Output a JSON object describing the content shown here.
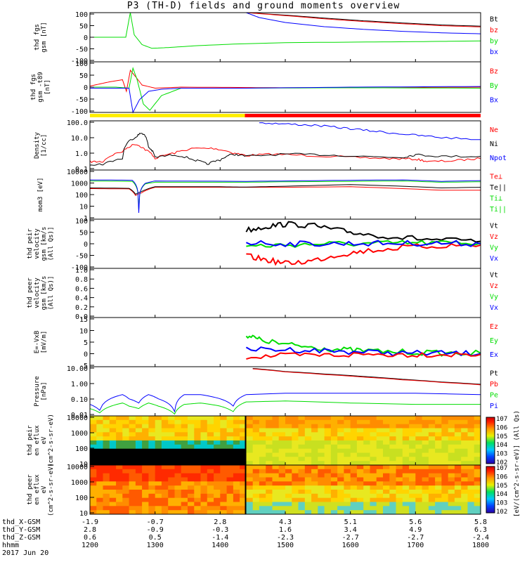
{
  "title": "P3 (TH-D) fields and ground moments overview",
  "date": "2017 Jun 20",
  "time_labels": [
    "1200",
    "1300",
    "1400",
    "1500",
    "1600",
    "1700",
    "1800"
  ],
  "ephemeris": [
    {
      "name": "thd_X-GSM",
      "values": [
        "-1.9",
        "-0.7",
        "2.8",
        "4.3",
        "5.1",
        "5.6",
        "5.8"
      ]
    },
    {
      "name": "thd_Y-GSM",
      "values": [
        "2.8",
        "-0.9",
        "-0.3",
        "1.6",
        "3.4",
        "4.9",
        "6.3"
      ]
    },
    {
      "name": "thd_Z-GSM",
      "values": [
        "0.6",
        "0.5",
        "-1.4",
        "-2.3",
        "-2.7",
        "-2.7",
        "-2.4"
      ]
    },
    {
      "name": "hhmm",
      "values": []
    }
  ],
  "colors": {
    "black": "#000000",
    "red": "#ff0000",
    "green": "#00dd00",
    "blue": "#0000ff",
    "yellow": "#ffee00"
  },
  "spectro_colorbar": {
    "label": "[eV/(cm^2-s-sr-eV)] (All Qs)",
    "ticks": [
      "10^2",
      "10^3",
      "10^4",
      "10^5",
      "10^6",
      "10^7"
    ]
  },
  "chart_data": [
    {
      "type": "line",
      "ylabel": "thd fgs gsm [nT]",
      "ylim": [
        -100,
        100
      ],
      "yticks": [
        "100",
        "50",
        "0",
        "-50",
        "-100"
      ],
      "legend": [
        {
          "name": "Bt",
          "color": "black"
        },
        {
          "name": "bz",
          "color": "red"
        },
        {
          "name": "by",
          "color": "green"
        },
        {
          "name": "bx",
          "color": "blue"
        }
      ],
      "series": [
        {
          "name": "Bt",
          "color": "black",
          "x": [
            1440,
            1500,
            1560,
            1620,
            1680,
            1740,
            1800
          ],
          "y": [
            100,
            90,
            78,
            67,
            58,
            50,
            45
          ]
        },
        {
          "name": "bz",
          "color": "red",
          "x": [
            1440,
            1500,
            1560,
            1620,
            1680,
            1740,
            1800
          ],
          "y": [
            100,
            88,
            75,
            64,
            55,
            47,
            42
          ]
        },
        {
          "name": "by",
          "color": "green",
          "x": [
            1200,
            1255,
            1262,
            1268,
            1280,
            1295,
            1320,
            1360,
            1420,
            1500,
            1600,
            1700,
            1800
          ],
          "y": [
            0,
            0,
            100,
            10,
            -30,
            -45,
            -42,
            -35,
            -28,
            -22,
            -20,
            -18,
            -15
          ]
        },
        {
          "name": "bx",
          "color": "blue",
          "x": [
            1440,
            1460,
            1500,
            1560,
            1620,
            1680,
            1740,
            1800
          ],
          "y": [
            100,
            80,
            60,
            43,
            32,
            24,
            18,
            14
          ]
        }
      ]
    },
    {
      "type": "line",
      "ylabel": "thd fgs gsm -t89 [nT]",
      "ylim": [
        -120,
        120
      ],
      "yticks": [
        "100",
        "50",
        "0",
        "-50",
        "-100"
      ],
      "legend": [
        {
          "name": "Bz",
          "color": "red"
        },
        {
          "name": "By",
          "color": "green"
        },
        {
          "name": "Bx",
          "color": "blue"
        }
      ],
      "series": [
        {
          "name": "Bz",
          "color": "red",
          "x": [
            1200,
            1230,
            1250,
            1256,
            1262,
            1270,
            1280,
            1300,
            1340,
            1440,
            1500,
            1600,
            1700,
            1800
          ],
          "y": [
            5,
            25,
            35,
            -20,
            80,
            50,
            10,
            -5,
            0,
            -2,
            -3,
            -3,
            -2,
            0
          ]
        },
        {
          "name": "By",
          "color": "green",
          "x": [
            1200,
            1240,
            1260,
            1266,
            1272,
            1282,
            1292,
            1310,
            1340,
            1440,
            1600,
            1800
          ],
          "y": [
            0,
            0,
            -5,
            90,
            40,
            -80,
            -110,
            -40,
            -5,
            -5,
            -3,
            -5
          ]
        },
        {
          "name": "Bx",
          "color": "blue",
          "x": [
            1200,
            1240,
            1260,
            1266,
            1276,
            1290,
            1310,
            1340,
            1440,
            1600,
            1800
          ],
          "y": [
            -5,
            -5,
            -5,
            -120,
            -60,
            -20,
            -10,
            -5,
            -5,
            0,
            3
          ]
        }
      ],
      "mode_bar": {
        "segments": [
          {
            "start": 1200,
            "end": 1438,
            "color": "yellow"
          },
          {
            "start": 1438,
            "end": 1800,
            "color": "red"
          }
        ]
      }
    },
    {
      "type": "line",
      "ylabel": "Density [1/cc]",
      "yscale": "log",
      "ylim": [
        0.08,
        200
      ],
      "yticks": [
        "100.0",
        "10.0",
        "1.0",
        "0.1"
      ],
      "legend": [
        {
          "name": "Ne",
          "color": "red"
        },
        {
          "name": "Ni",
          "color": "black"
        },
        {
          "name": "Npot",
          "color": "blue"
        }
      ],
      "series": [
        {
          "name": "Ne",
          "color": "red",
          "x": [
            1200,
            1220,
            1250,
            1270,
            1285,
            1300,
            1330,
            1360,
            1390,
            1420,
            1440,
            1480,
            1540,
            1600,
            1660,
            1700,
            1720,
            1760,
            1800
          ],
          "y": [
            0.3,
            0.3,
            1.5,
            5,
            2,
            0.5,
            1.2,
            2.5,
            2.5,
            1.2,
            0.8,
            1.0,
            0.8,
            0.6,
            0.5,
            0.45,
            0.3,
            0.35,
            0.5
          ]
        },
        {
          "name": "Ni",
          "color": "black",
          "x": [
            1200,
            1220,
            1250,
            1270,
            1280,
            1290,
            1300,
            1330,
            1360,
            1380,
            1400,
            1420,
            1440,
            1500,
            1560,
            1620,
            1680,
            1700,
            1740,
            1800
          ],
          "y": [
            0.2,
            0.2,
            0.5,
            15,
            30,
            3,
            0.6,
            0.9,
            0.4,
            0.2,
            0.4,
            1.0,
            0.7,
            1.0,
            0.9,
            0.7,
            0.6,
            0.9,
            0.7,
            0.7
          ]
        },
        {
          "name": "Npot",
          "color": "blue",
          "x": [
            1460,
            1500,
            1540,
            1580,
            1620,
            1660,
            1700,
            1740,
            1800
          ],
          "y": [
            150,
            120,
            100,
            70,
            45,
            30,
            20,
            14,
            10
          ]
        }
      ]
    },
    {
      "type": "line",
      "ylabel": "mom3 [eV]",
      "yscale": "log",
      "ylim": [
        2,
        10000
      ],
      "yticks": [
        "10000",
        "1000",
        "100",
        "10",
        "1"
      ],
      "legend": [
        {
          "name": "Te⊥",
          "color": "red"
        },
        {
          "name": "Te||",
          "color": "black"
        },
        {
          "name": "Ti⊥",
          "color": "green"
        },
        {
          "name": "Ti||",
          "color": "green"
        }
      ],
      "series": [
        {
          "name": "Te⊥",
          "color": "red",
          "x": [
            1200,
            1260,
            1270,
            1280,
            1300,
            1400,
            1440,
            1500,
            1600,
            1680,
            1740,
            1800
          ],
          "y": [
            400,
            380,
            120,
            200,
            500,
            500,
            500,
            500,
            550,
            400,
            300,
            300
          ]
        },
        {
          "name": "Te||",
          "color": "black",
          "x": [
            1200,
            1260,
            1270,
            1280,
            1300,
            1400,
            1440,
            1500,
            1600,
            1680,
            1740,
            1800
          ],
          "y": [
            450,
            420,
            150,
            250,
            550,
            550,
            520,
            600,
            800,
            600,
            450,
            500
          ]
        },
        {
          "name": "Ti⊥",
          "color": "green",
          "x": [
            1200,
            1265,
            1275,
            1285,
            1300,
            1440,
            1500,
            1600,
            1680,
            1740,
            1800
          ],
          "y": [
            1500,
            1400,
            10,
            900,
            1200,
            1200,
            1300,
            1400,
            1500,
            1200,
            1300
          ]
        },
        {
          "name": "Ti||",
          "color": "blue",
          "x": [
            1200,
            1265,
            1275,
            1285,
            1300,
            1440,
            1500,
            1600,
            1680,
            1740,
            1800
          ],
          "y": [
            1800,
            1700,
            6,
            1000,
            1500,
            1400,
            1500,
            1700,
            1800,
            1400,
            1600
          ]
        }
      ]
    },
    {
      "type": "line",
      "ylabel": "thd peir velocity gsm [km/s (All Qs)]",
      "ylim": [
        -100,
        100
      ],
      "yticks": [
        "100",
        "50",
        "0",
        "-50",
        "-100"
      ],
      "legend": [
        {
          "name": "Vt",
          "color": "black"
        },
        {
          "name": "Vz",
          "color": "red"
        },
        {
          "name": "Vy",
          "color": "green"
        },
        {
          "name": "Vx",
          "color": "blue"
        }
      ],
      "series": [
        {
          "name": "Vt",
          "color": "black",
          "x": [
            1440,
            1470,
            1500,
            1540,
            1580,
            1620,
            1680,
            1740,
            1800
          ],
          "y": [
            55,
            70,
            80,
            75,
            55,
            40,
            25,
            15,
            10
          ]
        },
        {
          "name": "Vz",
          "color": "red",
          "x": [
            1440,
            1470,
            1500,
            1540,
            1580,
            1620,
            1680,
            1740,
            1800
          ],
          "y": [
            -50,
            -65,
            -80,
            -70,
            -45,
            -30,
            -15,
            -8,
            -5
          ]
        },
        {
          "name": "Vy",
          "color": "green",
          "x": [
            1440,
            1500,
            1560,
            1620,
            1680,
            1740,
            1800
          ],
          "y": [
            -10,
            -5,
            0,
            0,
            3,
            3,
            3
          ]
        },
        {
          "name": "Vx",
          "color": "blue",
          "x": [
            1440,
            1500,
            1560,
            1620,
            1680,
            1740,
            1800
          ],
          "y": [
            5,
            0,
            0,
            2,
            2,
            2,
            0
          ]
        }
      ]
    },
    {
      "type": "line",
      "ylabel": "thd peer velocity gsm [km/s (All Qs)]",
      "ylim": [
        0,
        1
      ],
      "yticks": [
        "1.0",
        "0.8",
        "0.6",
        "0.4",
        "0.2",
        "0.0"
      ],
      "legend": [
        {
          "name": "Vt",
          "color": "black"
        },
        {
          "name": "Vz",
          "color": "red"
        },
        {
          "name": "Vy",
          "color": "green"
        },
        {
          "name": "Vx",
          "color": "blue"
        }
      ],
      "series": []
    },
    {
      "type": "line",
      "ylabel": "E=-VxB [mV/m]",
      "ylim": [
        -5,
        15
      ],
      "yticks": [
        "15",
        "10",
        "5",
        "0",
        "-5"
      ],
      "legend": [
        {
          "name": "Ez",
          "color": "red"
        },
        {
          "name": "Ey",
          "color": "green"
        },
        {
          "name": "Ex",
          "color": "blue"
        }
      ],
      "series": [
        {
          "name": "Ey",
          "color": "green",
          "x": [
            1440,
            1460,
            1500,
            1540,
            1580,
            1620,
            1680,
            1740,
            1800
          ],
          "y": [
            8,
            6,
            4,
            3,
            2,
            1.5,
            1,
            0.5,
            0.5
          ]
        },
        {
          "name": "Ex",
          "color": "blue",
          "x": [
            1440,
            1500,
            1560,
            1620,
            1680,
            1740,
            1800
          ],
          "y": [
            2,
            2,
            1.5,
            1,
            0.5,
            0.5,
            0.3
          ]
        },
        {
          "name": "Ez",
          "color": "red",
          "x": [
            1440,
            1500,
            1560,
            1620,
            1680,
            1740,
            1800
          ],
          "y": [
            -1,
            -0.5,
            -0.3,
            0,
            0,
            0,
            0
          ]
        }
      ]
    },
    {
      "type": "line",
      "ylabel": "Pressure [nPa]",
      "yscale": "log",
      "ylim": [
        0.006,
        20
      ],
      "yticks": [
        "10.00",
        "1.00",
        "0.10",
        "0.01"
      ],
      "legend": [
        {
          "name": "Pt",
          "color": "black"
        },
        {
          "name": "Pb",
          "color": "red"
        },
        {
          "name": "Pe",
          "color": "green"
        },
        {
          "name": "Pi",
          "color": "blue"
        }
      ],
      "series": [
        {
          "name": "Pt",
          "color": "black",
          "x": [
            1450,
            1500,
            1560,
            1620,
            1680,
            1740,
            1800
          ],
          "y": [
            15,
            9,
            6,
            4,
            2.5,
            1.6,
            1.1
          ]
        },
        {
          "name": "Pb",
          "color": "red",
          "x": [
            1450,
            1500,
            1560,
            1620,
            1680,
            1740,
            1800
          ],
          "y": [
            14,
            8.5,
            5.5,
            3.6,
            2.3,
            1.5,
            1.0
          ]
        },
        {
          "name": "Pi",
          "color": "blue",
          "x": [
            1200,
            1215,
            1250,
            1260,
            1275,
            1290,
            1305,
            1330,
            1345,
            1370,
            1400,
            1420,
            1440,
            1500,
            1600,
            1700,
            1800
          ],
          "y": [
            0.04,
            0.015,
            0.2,
            0.1,
            0.05,
            0.2,
            0.1,
            0.012,
            0.2,
            0.2,
            0.1,
            0.03,
            0.2,
            0.25,
            0.25,
            0.25,
            0.2
          ]
        },
        {
          "name": "Pe",
          "color": "green",
          "x": [
            1200,
            1215,
            1250,
            1260,
            1275,
            1290,
            1305,
            1330,
            1345,
            1370,
            1400,
            1420,
            1440,
            1500,
            1600,
            1700,
            1800
          ],
          "y": [
            0.02,
            0.01,
            0.05,
            0.03,
            0.02,
            0.05,
            0.03,
            0.008,
            0.04,
            0.05,
            0.03,
            0.012,
            0.06,
            0.07,
            0.05,
            0.04,
            0.04
          ]
        }
      ]
    },
    {
      "type": "heatmap",
      "ylabel": "thd peir en eflux eV (cm^2-s-sr-eV)",
      "yscale": "log",
      "ylim": [
        5,
        20000
      ],
      "yticks": [
        "10000",
        "1000",
        "100",
        "10"
      ]
    },
    {
      "type": "heatmap",
      "ylabel": "thd peer en eflux eV (cm^2-s-sr-eV)",
      "yscale": "log",
      "ylim": [
        5,
        20000
      ],
      "yticks": [
        "10000",
        "1000",
        "100",
        "10"
      ]
    }
  ]
}
